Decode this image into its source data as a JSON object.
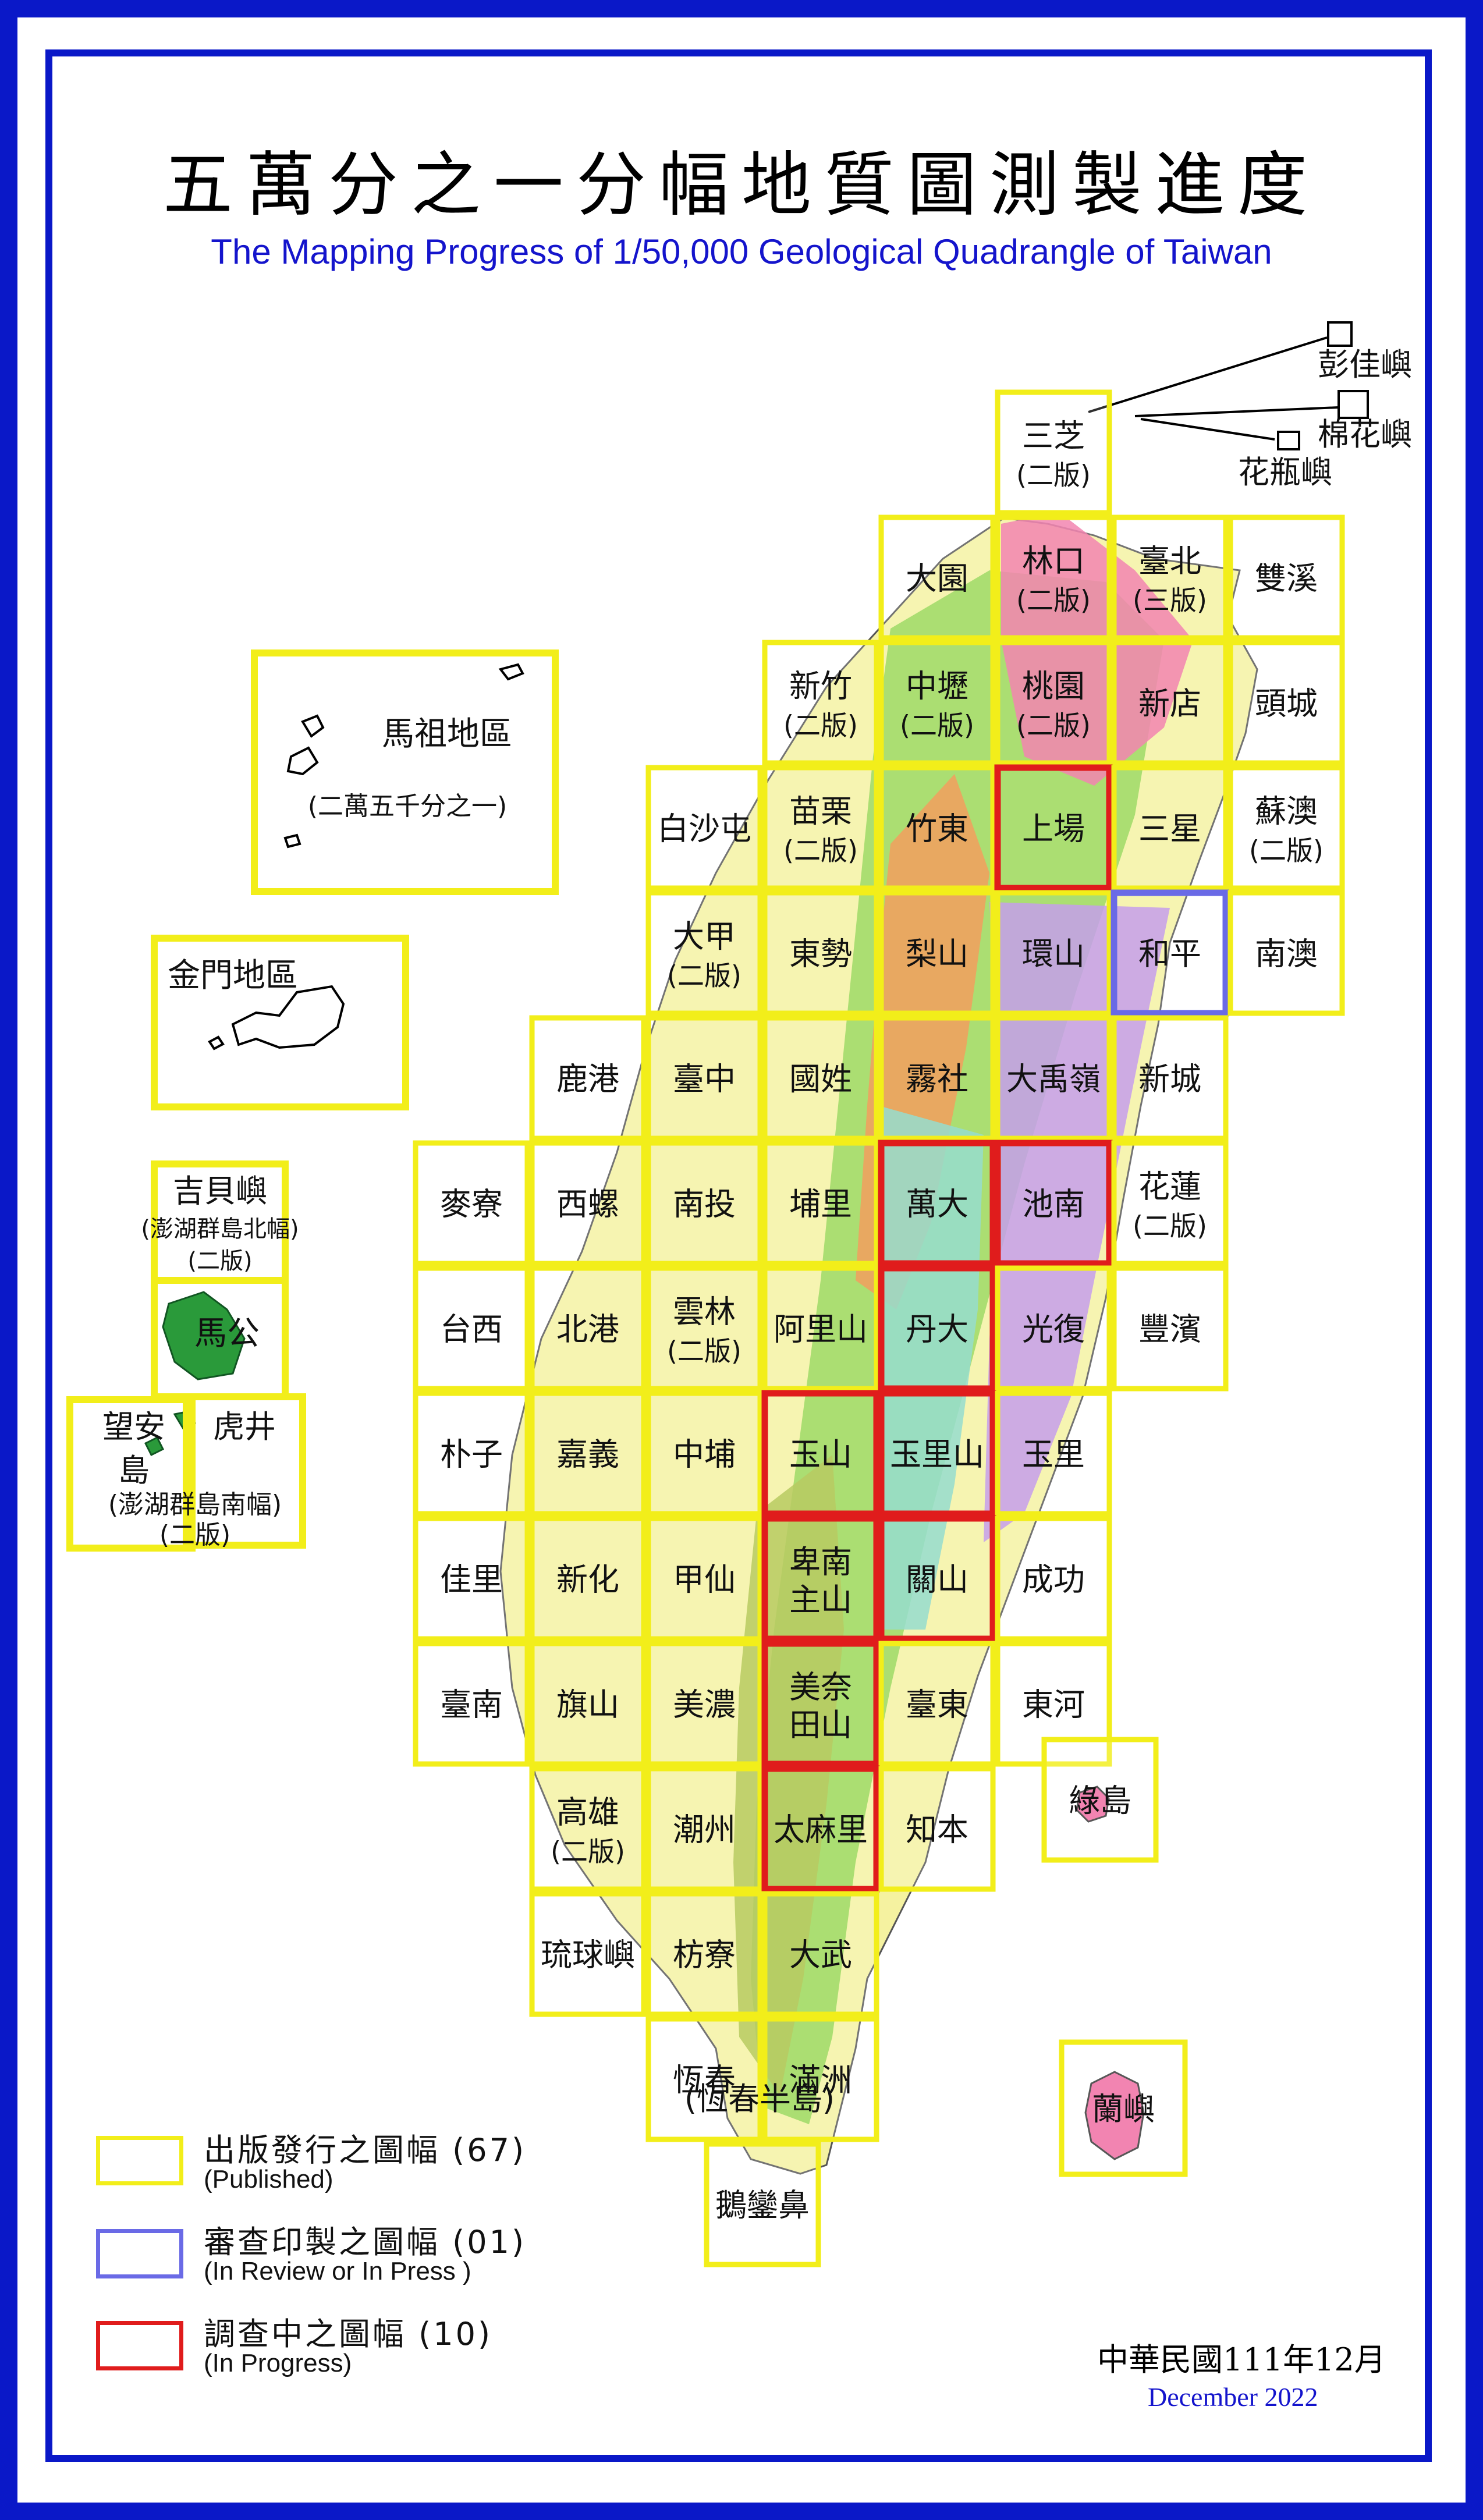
{
  "title_zh": "五萬分之一分幅地質圖測製進度",
  "title_en": "The Mapping Progress of 1/50,000 Geological Quadrangle of Taiwan",
  "colors": {
    "published": "#f2ee1a",
    "in_review": "#6a6ae6",
    "in_progress": "#e01c1c",
    "frame": "#0a18c8",
    "english_text": "#1414cc"
  },
  "sheets": [
    {
      "l1": "三芝",
      "l2": "(二版)",
      "status": "published"
    },
    {
      "l1": "大園",
      "l2": "",
      "status": "published"
    },
    {
      "l1": "林口",
      "l2": "(二版)",
      "status": "published"
    },
    {
      "l1": "臺北",
      "l2": "(三版)",
      "status": "published"
    },
    {
      "l1": "雙溪",
      "l2": "",
      "status": "published"
    },
    {
      "l1": "新竹",
      "l2": "(二版)",
      "status": "published"
    },
    {
      "l1": "中壢",
      "l2": "(二版)",
      "status": "published"
    },
    {
      "l1": "桃園",
      "l2": "(二版)",
      "status": "published"
    },
    {
      "l1": "新店",
      "l2": "",
      "status": "published"
    },
    {
      "l1": "頭城",
      "l2": "",
      "status": "published"
    },
    {
      "l1": "白沙屯",
      "l2": "",
      "status": "published"
    },
    {
      "l1": "苗栗",
      "l2": "(二版)",
      "status": "published"
    },
    {
      "l1": "竹東",
      "l2": "",
      "status": "published"
    },
    {
      "l1": "上場",
      "l2": "",
      "status": "in_progress"
    },
    {
      "l1": "三星",
      "l2": "",
      "status": "published"
    },
    {
      "l1": "蘇澳",
      "l2": "(二版)",
      "status": "published"
    },
    {
      "l1": "大甲",
      "l2": "(二版)",
      "status": "published"
    },
    {
      "l1": "東勢",
      "l2": "",
      "status": "published"
    },
    {
      "l1": "梨山",
      "l2": "",
      "status": "published"
    },
    {
      "l1": "環山",
      "l2": "",
      "status": "published"
    },
    {
      "l1": "和平",
      "l2": "",
      "status": "in_review"
    },
    {
      "l1": "南澳",
      "l2": "",
      "status": "published"
    },
    {
      "l1": "鹿港",
      "l2": "",
      "status": "published"
    },
    {
      "l1": "臺中",
      "l2": "",
      "status": "published"
    },
    {
      "l1": "國姓",
      "l2": "",
      "status": "published"
    },
    {
      "l1": "霧社",
      "l2": "",
      "status": "published"
    },
    {
      "l1": "大禹嶺",
      "l2": "",
      "status": "published"
    },
    {
      "l1": "新城",
      "l2": "",
      "status": "published"
    },
    {
      "l1": "麥寮",
      "l2": "",
      "status": "published"
    },
    {
      "l1": "西螺",
      "l2": "",
      "status": "published"
    },
    {
      "l1": "南投",
      "l2": "",
      "status": "published"
    },
    {
      "l1": "埔里",
      "l2": "",
      "status": "published"
    },
    {
      "l1": "萬大",
      "l2": "",
      "status": "in_progress"
    },
    {
      "l1": "池南",
      "l2": "",
      "status": "in_progress"
    },
    {
      "l1": "花蓮",
      "l2": "(二版)",
      "status": "published"
    },
    {
      "l1": "台西",
      "l2": "",
      "status": "published"
    },
    {
      "l1": "北港",
      "l2": "",
      "status": "published"
    },
    {
      "l1": "雲林",
      "l2": "(二版)",
      "status": "published"
    },
    {
      "l1": "阿里山",
      "l2": "",
      "status": "published"
    },
    {
      "l1": "丹大",
      "l2": "",
      "status": "in_progress"
    },
    {
      "l1": "光復",
      "l2": "",
      "status": "published"
    },
    {
      "l1": "豐濱",
      "l2": "",
      "status": "published"
    },
    {
      "l1": "朴子",
      "l2": "",
      "status": "published"
    },
    {
      "l1": "嘉義",
      "l2": "",
      "status": "published"
    },
    {
      "l1": "中埔",
      "l2": "",
      "status": "published"
    },
    {
      "l1": "玉山",
      "l2": "",
      "status": "in_progress"
    },
    {
      "l1": "玉里山",
      "l2": "",
      "status": "in_progress"
    },
    {
      "l1": "玉里",
      "l2": "",
      "status": "published"
    },
    {
      "l1": "佳里",
      "l2": "",
      "status": "published"
    },
    {
      "l1": "新化",
      "l2": "",
      "status": "published"
    },
    {
      "l1": "甲仙",
      "l2": "",
      "status": "published"
    },
    {
      "l1": "卑南",
      "l2": "主山",
      "status": "in_progress"
    },
    {
      "l1": "關山",
      "l2": "",
      "status": "in_progress"
    },
    {
      "l1": "成功",
      "l2": "",
      "status": "published"
    },
    {
      "l1": "臺南",
      "l2": "",
      "status": "published"
    },
    {
      "l1": "旗山",
      "l2": "",
      "status": "published"
    },
    {
      "l1": "美濃",
      "l2": "",
      "status": "published"
    },
    {
      "l1": "美奈",
      "l2": "田山",
      "status": "in_progress"
    },
    {
      "l1": "臺東",
      "l2": "",
      "status": "published"
    },
    {
      "l1": "東河",
      "l2": "",
      "status": "published"
    },
    {
      "l1": "高雄",
      "l2": "(二版)",
      "status": "published"
    },
    {
      "l1": "潮州",
      "l2": "",
      "status": "published"
    },
    {
      "l1": "太麻里",
      "l2": "",
      "status": "in_progress"
    },
    {
      "l1": "知本",
      "l2": "",
      "status": "published"
    },
    {
      "l1": "琉球嶼",
      "l2": "",
      "status": "published"
    },
    {
      "l1": "枋寮",
      "l2": "",
      "status": "published"
    },
    {
      "l1": "大武",
      "l2": "",
      "status": "published"
    },
    {
      "l1": "恆春",
      "l2": "",
      "status": "published"
    },
    {
      "l1": "滿洲",
      "l2": "",
      "status": "published"
    },
    {
      "l1": "鵝鑾鼻",
      "l2": "",
      "status": "published"
    },
    {
      "l1": "綠島",
      "l2": "",
      "status": "published"
    },
    {
      "l1": "蘭嶼",
      "l2": "",
      "status": "published"
    }
  ],
  "hengchun_note": "(恆春半島)",
  "islets": [
    "彭佳嶼",
    "棉花嶼",
    "花瓶嶼"
  ],
  "inset_matsu": {
    "name": "馬祖地區",
    "note": "(二萬五千分之一)"
  },
  "inset_kinmen": {
    "name": "金門地區"
  },
  "penghu": {
    "north_name": "吉貝嶼",
    "north_note": "(澎湖群島北幅)",
    "north_ed": "(二版)",
    "magong": "馬公",
    "wangan_1": "望安",
    "wangan_2": "島",
    "huijing": "虎井",
    "south_note": "(澎湖群島南幅)",
    "south_ed": "(二版)"
  },
  "legend": [
    {
      "zh": "出版發行之圖幅 (67)",
      "en": "(Published)",
      "status": "published"
    },
    {
      "zh": "審查印製之圖幅 (01)",
      "en": "(In Review or In Press )",
      "status": "in_review"
    },
    {
      "zh": "調查中之圖幅 (10)",
      "en": "(In  Progress)",
      "status": "in_progress"
    }
  ],
  "date_zh": "中華民國111年12月",
  "date_en": "December 2022"
}
